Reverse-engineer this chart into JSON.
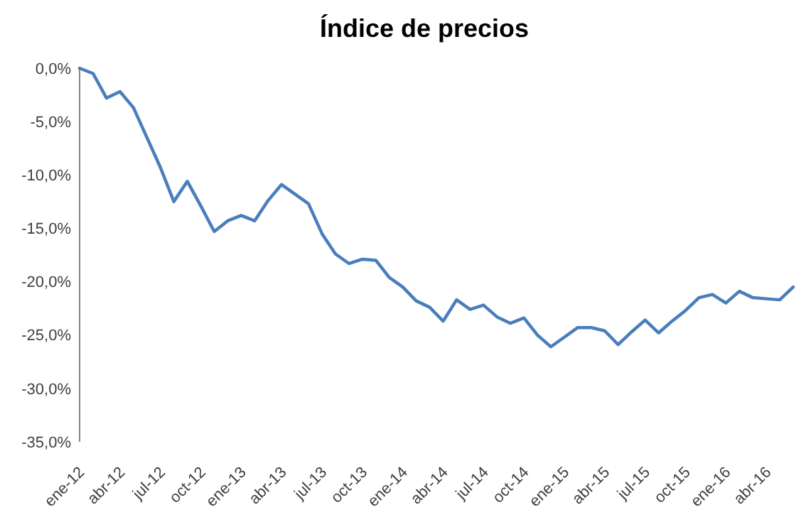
{
  "chart_data": {
    "type": "line",
    "title": "Índice de precios",
    "categories": [
      "ene-12",
      null,
      null,
      "abr-12",
      null,
      null,
      "jul-12",
      null,
      null,
      "oct-12",
      null,
      null,
      "ene-13",
      null,
      null,
      "abr-13",
      null,
      null,
      "jul-13",
      null,
      null,
      "oct-13",
      null,
      null,
      "ene-14",
      null,
      null,
      "abr-14",
      null,
      null,
      "jul-14",
      null,
      null,
      "oct-14",
      null,
      null,
      "ene-15",
      null,
      null,
      "abr-15",
      null,
      null,
      "jul-15",
      null,
      null,
      "oct-15",
      null,
      null,
      "ene-16",
      null,
      null,
      "abr-16",
      null,
      null
    ],
    "series": [
      {
        "color": "#4a7ebb",
        "values": [
          0,
          -0.5,
          -2.8,
          -2.2,
          -3.7,
          -6.5,
          -9.3,
          -12.5,
          -10.6,
          -12.9,
          -15.3,
          -14.3,
          -13.8,
          -14.3,
          -12.4,
          -10.9,
          -11.8,
          -12.7,
          -15.5,
          -17.4,
          -18.3,
          -17.9,
          -18.0,
          -19.6,
          -20.5,
          -21.8,
          -22.4,
          -23.7,
          -21.7,
          -22.6,
          -22.2,
          -23.3,
          -23.9,
          -23.4,
          -25.0,
          -26.1,
          -25.2,
          -24.3,
          -24.3,
          -24.6,
          -25.9,
          -24.7,
          -23.6,
          -24.8,
          -23.7,
          -22.7,
          -21.5,
          -21.2,
          -22.0,
          -20.9,
          -21.5,
          -21.6,
          -21.7,
          -20.5
        ]
      }
    ],
    "ylim": [
      -35,
      0
    ],
    "yticks": [
      {
        "value": 0,
        "label": "0,0%"
      },
      {
        "value": -5,
        "label": "-5,0%"
      },
      {
        "value": -10,
        "label": "-10,0%"
      },
      {
        "value": -15,
        "label": "-15,0%"
      },
      {
        "value": -20,
        "label": "-20,0%"
      },
      {
        "value": -25,
        "label": "-25,0%"
      },
      {
        "value": -30,
        "label": "-30,0%"
      },
      {
        "value": -35,
        "label": "-35,0%"
      }
    ],
    "marker": "none",
    "line_style": "solid"
  }
}
